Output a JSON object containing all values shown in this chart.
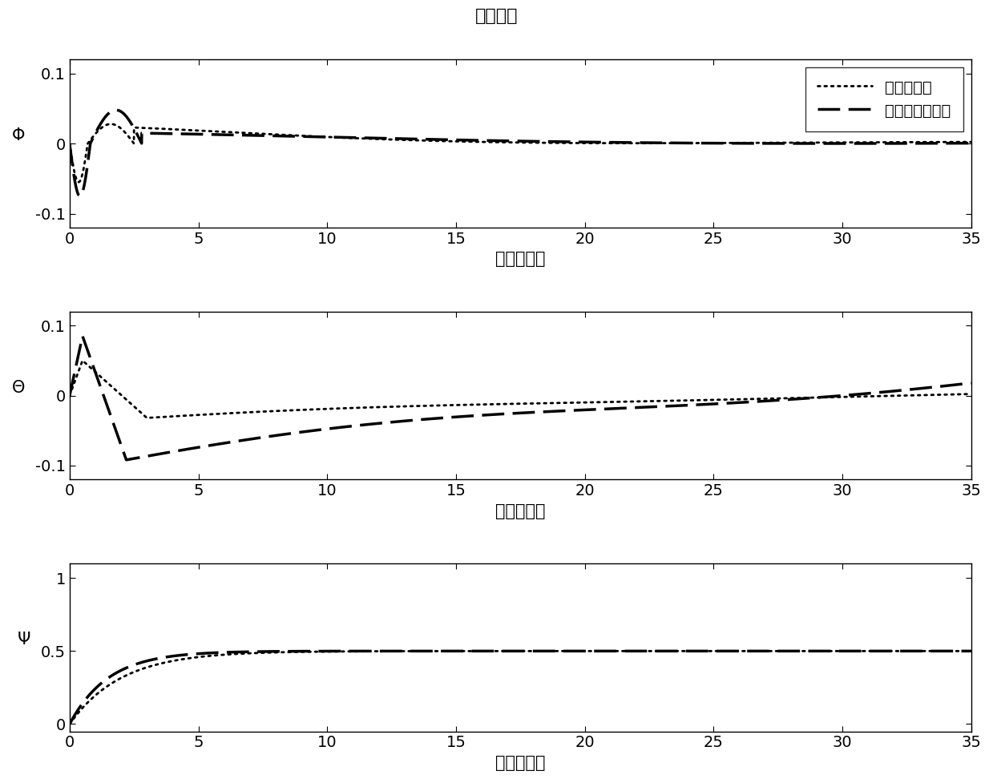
{
  "title": "姿态跟踪",
  "xlabel": "时间（秒）",
  "subplots": [
    {
      "ylabel": "Φ",
      "ylim": [
        -0.12,
        0.12
      ],
      "yticks": [
        -0.1,
        0,
        0.1
      ],
      "xlim": [
        0,
        35
      ],
      "xticks": [
        0,
        5,
        10,
        15,
        20,
        25,
        30,
        35
      ]
    },
    {
      "ylabel": "Θ",
      "ylim": [
        -0.12,
        0.12
      ],
      "yticks": [
        -0.1,
        0,
        0.1
      ],
      "xlim": [
        0,
        35
      ],
      "xticks": [
        0,
        5,
        10,
        15,
        20,
        25,
        30,
        35
      ]
    },
    {
      "ylabel": "Ψ",
      "ylim": [
        -0.05,
        1.1
      ],
      "yticks": [
        0,
        0.5,
        1
      ],
      "xlim": [
        0,
        35
      ],
      "xticks": [
        0,
        5,
        10,
        15,
        20,
        25,
        30,
        35
      ]
    }
  ],
  "legend_labels": [
    "线性滑模面",
    "快速终端滑模面"
  ],
  "line_color": "#000000",
  "line_width": 2.0
}
